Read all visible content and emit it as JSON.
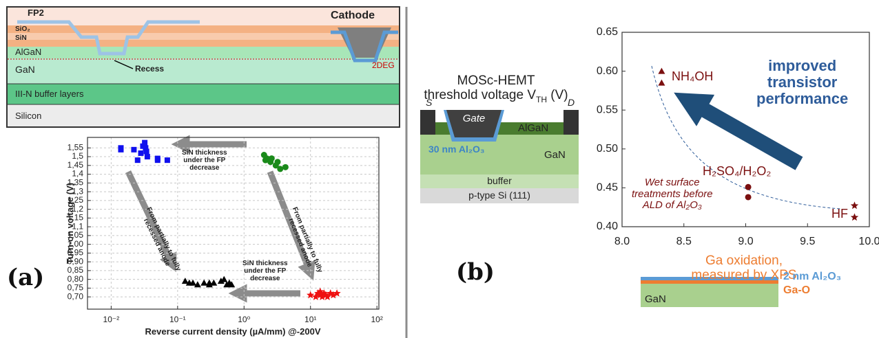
{
  "panels": {
    "a": {
      "label": "(a)",
      "layers": [
        "SiO₂",
        "SiN",
        "AlGaN",
        "GaN",
        "III-N buffer layers",
        "Silicon"
      ],
      "fp2": "FP2",
      "cathode": "Cathode",
      "recess": "Recess",
      "twodeg": "2DEG"
    },
    "b": {
      "label": "(b)",
      "device": {
        "s": "S",
        "d": "D",
        "gate": "Gate",
        "algan": "AlGaN",
        "gan": "GaN",
        "oxide": "30 nm Al₂O₃",
        "buffer": "buffer",
        "substrate": "p-type Si (111)"
      },
      "xps": {
        "oxide": "2 nm Al₂O₃",
        "gao": "Ga-O",
        "gan": "GaN"
      }
    }
  },
  "chart_data": [
    {
      "type": "scatter",
      "xlabel": "Reverse current density (µA/mm) @-200V",
      "ylabel": "Turn-on voltage (V)",
      "xscale": "log",
      "grid": true,
      "xlim": [
        0.0044,
        107
      ],
      "ylim": [
        0.63,
        1.61
      ],
      "xticks": [
        {
          "value": 0.01,
          "label": "10⁻²"
        },
        {
          "value": 0.1,
          "label": "10⁻¹"
        },
        {
          "value": 1,
          "label": "10⁰"
        },
        {
          "value": 10,
          "label": "10¹"
        },
        {
          "value": 100,
          "label": "10²"
        }
      ],
      "yticks": [
        {
          "value": 0.7,
          "label": "0,70"
        },
        {
          "value": 0.75,
          "label": "0,75"
        },
        {
          "value": 0.8,
          "label": "0,80"
        },
        {
          "value": 0.85,
          "label": "0,85"
        },
        {
          "value": 0.9,
          "label": "0,90"
        },
        {
          "value": 0.95,
          "label": "0,95"
        },
        {
          "value": 1.0,
          "label": "1,00"
        },
        {
          "value": 1.05,
          "label": "1,05"
        },
        {
          "value": 1.1,
          "label": "1,1"
        },
        {
          "value": 1.15,
          "label": "1,15"
        },
        {
          "value": 1.2,
          "label": "1,2"
        },
        {
          "value": 1.25,
          "label": "1,25"
        },
        {
          "value": 1.3,
          "label": "1,3"
        },
        {
          "value": 1.35,
          "label": "1,35"
        },
        {
          "value": 1.4,
          "label": "1,4"
        },
        {
          "value": 1.45,
          "label": "1,45"
        },
        {
          "value": 1.5,
          "label": "1,5"
        },
        {
          "value": 1.55,
          "label": "1,55"
        }
      ],
      "series": [
        {
          "color": "#1010ee",
          "marker": "square",
          "x": [
            0.014,
            0.014,
            0.022,
            0.025,
            0.028,
            0.03,
            0.032,
            0.033,
            0.034,
            0.035,
            0.05,
            0.05,
            0.07
          ],
          "values": [
            1.55,
            1.54,
            1.54,
            1.48,
            1.52,
            1.56,
            1.58,
            1.55,
            1.53,
            1.5,
            1.49,
            1.48,
            1.48
          ]
        },
        {
          "color": "#1a8a1a",
          "marker": "circle",
          "x": [
            2.0,
            2.1,
            2.2,
            2.5,
            2.6,
            3.0,
            3.2,
            3.5,
            4.2
          ],
          "values": [
            1.51,
            1.48,
            1.49,
            1.47,
            1.49,
            1.45,
            1.47,
            1.43,
            1.44
          ]
        },
        {
          "color": "#000000",
          "marker": "triangle",
          "x": [
            0.13,
            0.15,
            0.17,
            0.2,
            0.25,
            0.3,
            0.3,
            0.35,
            0.45,
            0.5,
            0.55,
            0.6,
            0.65
          ],
          "values": [
            0.79,
            0.78,
            0.78,
            0.77,
            0.78,
            0.77,
            0.78,
            0.78,
            0.79,
            0.8,
            0.77,
            0.78,
            0.77
          ]
        },
        {
          "color": "#ee1010",
          "marker": "star",
          "x": [
            10,
            12,
            13,
            14,
            14,
            15,
            16,
            17,
            18,
            20,
            22,
            25
          ],
          "values": [
            0.71,
            0.7,
            0.72,
            0.71,
            0.73,
            0.7,
            0.72,
            0.71,
            0.7,
            0.72,
            0.71,
            0.72
          ]
        }
      ],
      "annotations": [
        "SiN thickness\nunder the FP\ndecrease",
        "From partially to fully\nrecessed anode",
        "From partially to fully\nrecessed anode",
        "SiN thickness\nunder the FP\ndecrease"
      ]
    },
    {
      "type": "scatter",
      "xlabel": "Ga oxidation, measured by XPS",
      "ylabel": [
        "MOSc-HEMT\nthreshold voltage V",
        "TH",
        " (V)"
      ],
      "xscale": "linear",
      "grid": false,
      "xlim": [
        8.0,
        10.0
      ],
      "ylim": [
        0.4,
        0.65
      ],
      "xticks": [
        {
          "value": 8.0,
          "label": "8.0"
        },
        {
          "value": 8.5,
          "label": "8.5"
        },
        {
          "value": 9.0,
          "label": "9.0"
        },
        {
          "value": 9.5,
          "label": "9.5"
        },
        {
          "value": 10.0,
          "label": "10.0"
        }
      ],
      "yticks": [
        {
          "value": 0.4,
          "label": "0.40"
        },
        {
          "value": 0.45,
          "label": "0.45"
        },
        {
          "value": 0.5,
          "label": "0.50"
        },
        {
          "value": 0.55,
          "label": "0.55"
        },
        {
          "value": 0.6,
          "label": "0.60"
        },
        {
          "value": 0.65,
          "label": "0.65"
        }
      ],
      "series": [
        {
          "color": "#7b1010",
          "marker": "triangle",
          "x": [
            8.32,
            8.32
          ],
          "values": [
            0.6,
            0.585
          ]
        },
        {
          "color": "#7b1010",
          "marker": "circle",
          "x": [
            9.02,
            9.02
          ],
          "values": [
            0.451,
            0.438
          ]
        },
        {
          "color": "#7b1010",
          "marker": "star",
          "x": [
            9.88,
            9.88
          ],
          "values": [
            0.427,
            0.412
          ]
        }
      ],
      "annotations": [
        "NH₄OH",
        "H₂SO₄/H₂O₂",
        "HF",
        "Wet surface\ntreatments before\nALD of Al₂O₃",
        "improved\ntransistor\nperformance"
      ]
    }
  ]
}
